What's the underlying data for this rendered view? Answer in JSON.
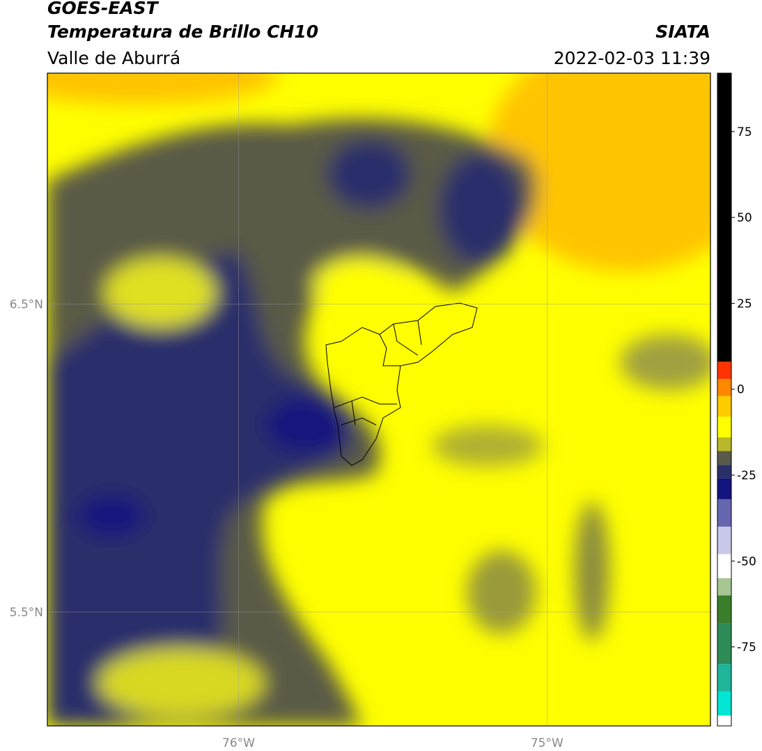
{
  "header": {
    "title": "GOES-EAST",
    "subtitle": "Temperatura de Brillo CH10",
    "region": "Valle de Aburrá",
    "source": "SIATA",
    "datetime": "2022-02-03 11:39"
  },
  "map": {
    "xlim": [
      -76.62,
      -74.47
    ],
    "ylim": [
      5.13,
      7.25
    ],
    "xticks": [
      {
        "value": -76,
        "label": "76°W"
      },
      {
        "value": -75,
        "label": "75°W"
      }
    ],
    "yticks": [
      {
        "value": 6.5,
        "label": "6.5°N"
      },
      {
        "value": 5.5,
        "label": "5.5°N"
      }
    ],
    "grid": true
  },
  "colorbar": {
    "lim": [
      -98,
      92
    ],
    "ticks": [
      -75,
      -50,
      -25,
      0,
      25,
      50,
      75
    ],
    "stops": [
      {
        "value": -98,
        "color": "#ffffff"
      },
      {
        "value": -95,
        "color": "#00e5d4"
      },
      {
        "value": -88,
        "color": "#1fb59a"
      },
      {
        "value": -80,
        "color": "#2e8b57"
      },
      {
        "value": -68,
        "color": "#3a7d2a"
      },
      {
        "value": -60,
        "color": "#a6c694"
      },
      {
        "value": -55,
        "color": "#ffffff"
      },
      {
        "value": -48,
        "color": "#c8c8e8"
      },
      {
        "value": -40,
        "color": "#6666b0"
      },
      {
        "value": -32,
        "color": "#14147e"
      },
      {
        "value": -26,
        "color": "#2a2f6a"
      },
      {
        "value": -22,
        "color": "#5a5a4a"
      },
      {
        "value": -18,
        "color": "#b8b82a"
      },
      {
        "value": -14,
        "color": "#ffff00"
      },
      {
        "value": -8,
        "color": "#ffcc00"
      },
      {
        "value": -2,
        "color": "#ff8800"
      },
      {
        "value": 3,
        "color": "#ff3300"
      },
      {
        "value": 8,
        "color": "#000000"
      }
    ]
  }
}
